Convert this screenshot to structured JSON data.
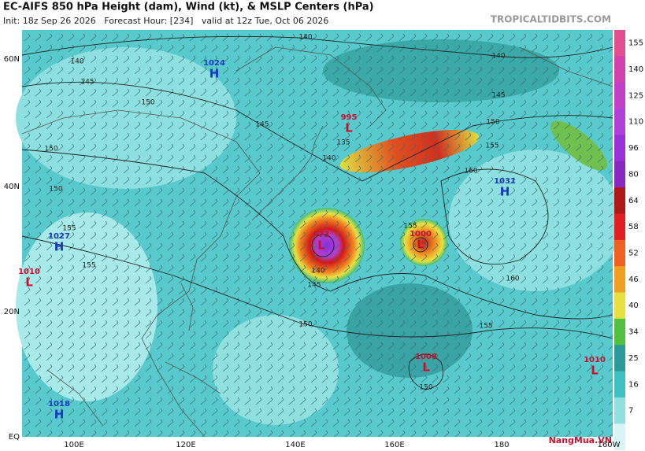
{
  "header": {
    "title": "EC-AIFS 850 hPa Height (dam), Wind (kt), & MSLP Centers (hPa)",
    "subtitle": "Init: 18z Sep 26 2026   Forecast Hour: [234]   valid at 12z Tue, Oct 06 2026",
    "site": "TROPICALTIDBITS.COM"
  },
  "latitude_labels": [
    "60N",
    "40N",
    "20N",
    "EQ"
  ],
  "longitude_labels": [
    "100E",
    "120E",
    "140E",
    "160E",
    "180",
    "160W"
  ],
  "colorbar": {
    "labels": [
      155,
      140,
      125,
      110,
      96,
      80,
      64,
      58,
      52,
      46,
      40,
      34,
      25,
      16,
      7
    ]
  },
  "pressure_centers": [
    {
      "letter": "H",
      "value": "1024"
    },
    {
      "letter": "H",
      "value": "1031"
    },
    {
      "letter": "H",
      "value": "1027"
    },
    {
      "letter": "L",
      "value": "1010"
    },
    {
      "letter": "L",
      "value": "995"
    },
    {
      "letter": "L",
      "value": "973"
    },
    {
      "letter": "L",
      "value": "1000"
    },
    {
      "letter": "L",
      "value": "1008"
    },
    {
      "letter": "L",
      "value": "1010"
    },
    {
      "letter": "H",
      "value": "1018"
    }
  ],
  "contour_labels": [
    "140",
    "140",
    "145",
    "150",
    "145",
    "150",
    "150",
    "155",
    "155",
    "140",
    "145",
    "150",
    "155",
    "160",
    "135",
    "140",
    "155",
    "140",
    "145",
    "150",
    "160",
    "155",
    "150"
  ],
  "watermark": "NangMua.VN"
}
